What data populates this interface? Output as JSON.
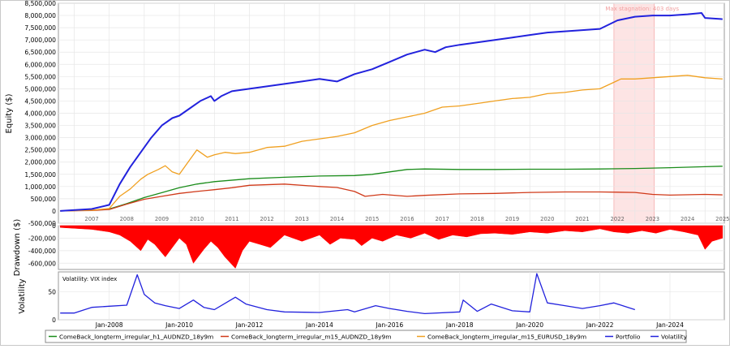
{
  "chart_data": [
    {
      "type": "line",
      "ylabel": "Equity ($)",
      "ylim": [
        -500000,
        8500000
      ],
      "y_ticks": [
        "-500,000",
        "0",
        "500,000",
        "1,000,000",
        "1,500,000",
        "2,000,000",
        "2,500,000",
        "3,000,000",
        "3,500,000",
        "4,000,000",
        "4,500,000",
        "5,000,000",
        "5,500,000",
        "6,000,000",
        "6,500,000",
        "7,000,000",
        "7,500,000",
        "8,000,000",
        "8,500,000"
      ],
      "x_ticks": [
        "2007",
        "2008",
        "2009",
        "2010",
        "2011",
        "2012",
        "2013",
        "2014",
        "2015",
        "2016",
        "2017",
        "2018",
        "2019",
        "2020",
        "2021",
        "2022",
        "2023",
        "2024",
        "2025"
      ],
      "xlim": [
        2006.55,
        2025.55
      ],
      "annotation": "Max stagnation: 403 days",
      "stagnation_range": [
        2022.4,
        2023.55
      ],
      "grid": true,
      "series": [
        {
          "name": "ComeBack_longterm_irregular_h1_AUDNZD_18y9m",
          "color": "#1a8c1a",
          "x": [
            2006.6,
            2007.5,
            2008.0,
            2008.5,
            2009.0,
            2009.5,
            2010.0,
            2010.5,
            2011.0,
            2012.0,
            2013.0,
            2014.0,
            2015.0,
            2015.5,
            2016.0,
            2016.5,
            2017.0,
            2018.0,
            2019.0,
            2020.0,
            2021.0,
            2022.0,
            2023.0,
            2024.0,
            2025.0,
            2025.5
          ],
          "y": [
            0,
            30000,
            80000,
            300000,
            550000,
            750000,
            950000,
            1100000,
            1200000,
            1320000,
            1380000,
            1430000,
            1450000,
            1500000,
            1600000,
            1700000,
            1720000,
            1700000,
            1700000,
            1710000,
            1710000,
            1720000,
            1740000,
            1770000,
            1810000,
            1830000
          ]
        },
        {
          "name": "ComeBack_longterm_irregular_m15_AUDNZD_18y9m",
          "color": "#d03a1a",
          "x": [
            2006.6,
            2007.5,
            2008.0,
            2008.5,
            2009.0,
            2009.5,
            2010.0,
            2010.5,
            2011.0,
            2011.5,
            2012.0,
            2013.0,
            2014.0,
            2014.5,
            2015.0,
            2015.3,
            2015.8,
            2016.5,
            2017.0,
            2018.0,
            2019.0,
            2020.0,
            2021.0,
            2022.0,
            2023.0,
            2023.5,
            2024.0,
            2025.0,
            2025.5
          ],
          "y": [
            0,
            20000,
            60000,
            280000,
            480000,
            600000,
            720000,
            800000,
            870000,
            950000,
            1050000,
            1100000,
            1000000,
            960000,
            800000,
            600000,
            680000,
            600000,
            640000,
            700000,
            720000,
            760000,
            780000,
            780000,
            760000,
            680000,
            650000,
            680000,
            660000
          ]
        },
        {
          "name": "ComeBack_longterm_irregular_m15_EURUSD_18y9m",
          "color": "#f0a020",
          "x": [
            2006.6,
            2007.5,
            2008.0,
            2008.3,
            2008.6,
            2008.9,
            2009.1,
            2009.4,
            2009.6,
            2009.8,
            2010.0,
            2010.2,
            2010.5,
            2010.8,
            2011.0,
            2011.3,
            2011.6,
            2012.0,
            2012.5,
            2013.0,
            2013.5,
            2014.0,
            2014.5,
            2015.0,
            2015.5,
            2016.0,
            2016.5,
            2017.0,
            2017.3,
            2017.5,
            2018.0,
            2018.5,
            2019.0,
            2019.5,
            2020.0,
            2020.5,
            2021.0,
            2021.5,
            2022.0,
            2022.3,
            2022.6,
            2023.0,
            2023.5,
            2024.0,
            2024.5,
            2025.0,
            2025.5
          ],
          "y": [
            0,
            30000,
            100000,
            600000,
            900000,
            1300000,
            1500000,
            1700000,
            1850000,
            1600000,
            1500000,
            1900000,
            2500000,
            2200000,
            2300000,
            2400000,
            2350000,
            2400000,
            2600000,
            2650000,
            2850000,
            2950000,
            3050000,
            3200000,
            3500000,
            3700000,
            3850000,
            4000000,
            4150000,
            4250000,
            4300000,
            4400000,
            4500000,
            4600000,
            4650000,
            4800000,
            4850000,
            4950000,
            5000000,
            5200000,
            5400000,
            5400000,
            5450000,
            5500000,
            5550000,
            5450000,
            5400000
          ]
        },
        {
          "name": "Portfolio",
          "color": "#2222dd",
          "x": [
            2006.6,
            2007.5,
            2008.0,
            2008.3,
            2008.6,
            2008.9,
            2009.2,
            2009.5,
            2009.8,
            2010.0,
            2010.3,
            2010.6,
            2010.9,
            2011.0,
            2011.2,
            2011.5,
            2012.0,
            2012.5,
            2013.0,
            2013.5,
            2014.0,
            2014.5,
            2015.0,
            2015.5,
            2016.0,
            2016.5,
            2017.0,
            2017.3,
            2017.6,
            2018.0,
            2018.5,
            2019.0,
            2019.5,
            2020.0,
            2020.5,
            2021.0,
            2021.5,
            2022.0,
            2022.5,
            2023.0,
            2023.5,
            2024.0,
            2024.5,
            2024.9,
            2025.0,
            2025.5
          ],
          "y": [
            0,
            80000,
            250000,
            1100000,
            1800000,
            2400000,
            3000000,
            3500000,
            3800000,
            3900000,
            4200000,
            4500000,
            4700000,
            4500000,
            4700000,
            4900000,
            5000000,
            5100000,
            5200000,
            5300000,
            5400000,
            5300000,
            5600000,
            5800000,
            6100000,
            6400000,
            6600000,
            6500000,
            6700000,
            6800000,
            6900000,
            7000000,
            7100000,
            7200000,
            7300000,
            7350000,
            7400000,
            7450000,
            7800000,
            7950000,
            8000000,
            8000000,
            8050000,
            8100000,
            7900000,
            7850000
          ]
        }
      ]
    },
    {
      "type": "area",
      "ylabel": "Drawdown ($)",
      "ylim": [
        -700000,
        0
      ],
      "y_ticks": [
        "0",
        "-200,000",
        "-400,000",
        "-600,000"
      ],
      "color": "#ff0000",
      "x": [
        2006.6,
        2007.5,
        2008.0,
        2008.3,
        2008.6,
        2008.9,
        2009.1,
        2009.3,
        2009.6,
        2009.8,
        2010.0,
        2010.2,
        2010.4,
        2010.7,
        2010.9,
        2011.1,
        2011.3,
        2011.6,
        2011.8,
        2012.0,
        2012.3,
        2012.6,
        2013.0,
        2013.5,
        2014.0,
        2014.3,
        2014.6,
        2015.0,
        2015.2,
        2015.5,
        2015.8,
        2016.2,
        2016.6,
        2017.0,
        2017.4,
        2017.8,
        2018.2,
        2018.6,
        2019.0,
        2019.5,
        2020.0,
        2020.5,
        2021.0,
        2021.5,
        2022.0,
        2022.4,
        2022.8,
        2023.2,
        2023.6,
        2024.0,
        2024.4,
        2024.8,
        2025.0,
        2025.2,
        2025.5
      ],
      "y": [
        -30000,
        -60000,
        -100000,
        -150000,
        -250000,
        -400000,
        -220000,
        -300000,
        -500000,
        -350000,
        -200000,
        -300000,
        -600000,
        -380000,
        -250000,
        -350000,
        -500000,
        -680000,
        -400000,
        -250000,
        -300000,
        -350000,
        -150000,
        -250000,
        -150000,
        -300000,
        -200000,
        -220000,
        -320000,
        -200000,
        -250000,
        -150000,
        -200000,
        -120000,
        -220000,
        -150000,
        -180000,
        -130000,
        -120000,
        -140000,
        -100000,
        -120000,
        -80000,
        -100000,
        -50000,
        -100000,
        -120000,
        -80000,
        -120000,
        -60000,
        -100000,
        -150000,
        -380000,
        -250000,
        -200000
      ]
    },
    {
      "type": "line",
      "ylabel": "Volatility",
      "title": "Volatility: VIX index",
      "ylim": [
        0,
        85
      ],
      "y_ticks": [
        "0",
        "50"
      ],
      "color": "#2222dd",
      "x_ticks": [
        "Jan-2008",
        "Jan-2010",
        "Jan-2012",
        "Jan-2014",
        "Jan-2016",
        "Jan-2018",
        "Jan-2020",
        "Jan-2022",
        "Jan-2024"
      ],
      "xlim": [
        2006.55,
        2025.55
      ],
      "x": [
        2006.6,
        2007.0,
        2007.5,
        2008.0,
        2008.5,
        2008.8,
        2009.0,
        2009.3,
        2009.6,
        2010.0,
        2010.4,
        2010.7,
        2011.0,
        2011.6,
        2011.9,
        2012.5,
        2013.0,
        2014.0,
        2014.8,
        2015.0,
        2015.6,
        2016.0,
        2016.5,
        2017.0,
        2018.0,
        2018.1,
        2018.5,
        2018.9,
        2019.5,
        2020.0,
        2020.2,
        2020.5,
        2021.0,
        2021.5,
        2022.0,
        2022.4,
        2022.8,
        2023.0
      ],
      "y": [
        12,
        12,
        22,
        24,
        26,
        80,
        45,
        30,
        25,
        20,
        35,
        22,
        18,
        40,
        28,
        18,
        14,
        13,
        18,
        14,
        25,
        20,
        15,
        11,
        14,
        35,
        15,
        28,
        16,
        14,
        82,
        30,
        25,
        20,
        25,
        30,
        22,
        18
      ]
    }
  ],
  "legend": [
    {
      "label": "ComeBack_longterm_irregular_h1_AUDNZD_18y9m",
      "color": "#1a8c1a"
    },
    {
      "label": "ComeBack_longterm_irregular_m15_AUDNZD_18y9m",
      "color": "#d03a1a"
    },
    {
      "label": "ComeBack_longterm_irregular_m15_EURUSD_18y9m",
      "color": "#f0a020"
    },
    {
      "label": "Portfolio",
      "color": "#2222dd"
    },
    {
      "label": "Volatility",
      "color": "#2222dd"
    }
  ]
}
